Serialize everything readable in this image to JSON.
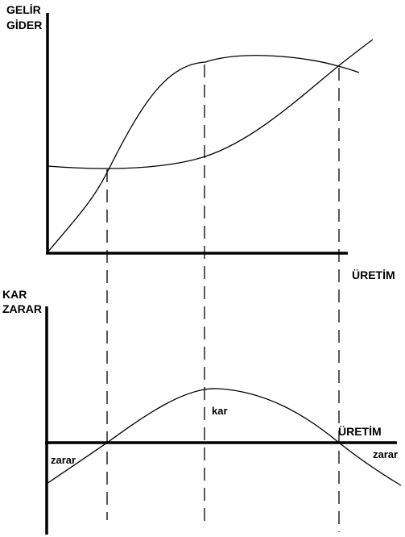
{
  "top_panel": {
    "y_label_line1": "GELİR",
    "y_label_line2": "GİDER",
    "x_label": "ÜRETİM"
  },
  "bottom_panel": {
    "y_label_line1": "KAR",
    "y_label_line2": "ZARAR",
    "x_label": "ÜRETİM",
    "profit_label": "kar",
    "loss_label_left": "zarar",
    "loss_label_right": "zarar"
  },
  "colors": {
    "ink": "#000000",
    "background": "#ffffff"
  }
}
